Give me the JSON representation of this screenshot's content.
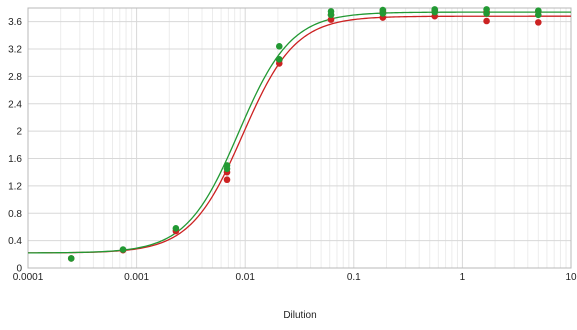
{
  "chart_data": {
    "type": "scatter",
    "title": "",
    "xlabel": "Dilution",
    "ylabel": "",
    "x_scale": "log",
    "xlim": [
      0.0001,
      10
    ],
    "ylim": [
      0,
      3.8
    ],
    "grid": true,
    "legend": "none",
    "x_tick_labels": [
      "0.0001",
      "0.001",
      "0.01",
      "0.1",
      "1",
      "10"
    ],
    "x_tick_values": [
      0.0001,
      0.001,
      0.01,
      0.1,
      1,
      10
    ],
    "y_tick_labels": [
      "0",
      "0.4",
      "0.8",
      "1.2",
      "1.6",
      "2",
      "2.4",
      "2.8",
      "3.2",
      "3.6"
    ],
    "y_tick_values": [
      0,
      0.4,
      0.8,
      1.2,
      1.6,
      2.0,
      2.4,
      2.8,
      3.2,
      3.6
    ],
    "series": [
      {
        "color": "#cc2222",
        "points": [
          {
            "x": 0.00025,
            "y": 0.14
          },
          {
            "x": 0.00075,
            "y": 0.26
          },
          {
            "x": 0.0023,
            "y": 0.54
          },
          {
            "x": 0.0068,
            "y": 1.29
          },
          {
            "x": 0.0068,
            "y": 1.4
          },
          {
            "x": 0.0206,
            "y": 2.99
          },
          {
            "x": 0.0206,
            "y": 3.04
          },
          {
            "x": 0.0617,
            "y": 3.63
          },
          {
            "x": 0.0617,
            "y": 3.7
          },
          {
            "x": 0.185,
            "y": 3.66
          },
          {
            "x": 0.185,
            "y": 3.74
          },
          {
            "x": 0.556,
            "y": 3.68
          },
          {
            "x": 0.556,
            "y": 3.76
          },
          {
            "x": 1.67,
            "y": 3.61
          },
          {
            "x": 1.67,
            "y": 3.74
          },
          {
            "x": 5.0,
            "y": 3.59
          },
          {
            "x": 5.0,
            "y": 3.75
          }
        ],
        "curve": {
          "bottom": 0.22,
          "top": 3.68,
          "ec50": 0.0095,
          "hill": 1.8
        }
      },
      {
        "color": "#229933",
        "points": [
          {
            "x": 0.00025,
            "y": 0.14
          },
          {
            "x": 0.00075,
            "y": 0.27
          },
          {
            "x": 0.0023,
            "y": 0.58
          },
          {
            "x": 0.0068,
            "y": 1.45
          },
          {
            "x": 0.0068,
            "y": 1.5
          },
          {
            "x": 0.0206,
            "y": 3.05
          },
          {
            "x": 0.0206,
            "y": 3.24
          },
          {
            "x": 0.0617,
            "y": 3.7
          },
          {
            "x": 0.0617,
            "y": 3.75
          },
          {
            "x": 0.185,
            "y": 3.72
          },
          {
            "x": 0.185,
            "y": 3.77
          },
          {
            "x": 0.556,
            "y": 3.74
          },
          {
            "x": 0.556,
            "y": 3.78
          },
          {
            "x": 1.67,
            "y": 3.72
          },
          {
            "x": 1.67,
            "y": 3.78
          },
          {
            "x": 5.0,
            "y": 3.7
          },
          {
            "x": 5.0,
            "y": 3.76
          }
        ],
        "curve": {
          "bottom": 0.22,
          "top": 3.74,
          "ec50": 0.0087,
          "hill": 1.8
        }
      }
    ]
  }
}
